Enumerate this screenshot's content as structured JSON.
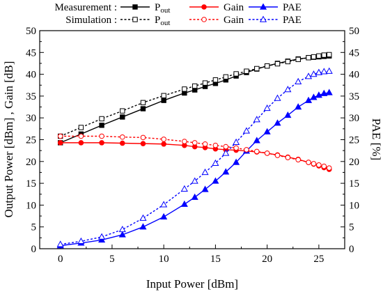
{
  "chart_data": {
    "type": "line",
    "xlabel": "Input Power [dBm]",
    "ylabel_left": "Output Power [dBm] , Gain [dB]",
    "ylabel_right": "PAE [%]",
    "xlim": [
      -2,
      27.5
    ],
    "ylim": [
      0,
      50
    ],
    "x_ticks": [
      0,
      5,
      10,
      15,
      20,
      25
    ],
    "y_ticks": [
      0,
      5,
      10,
      15,
      20,
      25,
      30,
      35,
      40,
      45,
      50
    ],
    "grid": false,
    "legend": {
      "placement": "top",
      "rows": [
        {
          "label": "Measurement :",
          "style": "solid",
          "entries": [
            {
              "series": "pout_meas",
              "text": "P",
              "sub": "out"
            },
            {
              "series": "gain_meas",
              "text": "Gain"
            },
            {
              "series": "pae_meas",
              "text": "PAE"
            }
          ]
        },
        {
          "label": "Simulation :",
          "style": "dashed",
          "entries": [
            {
              "series": "pout_sim",
              "text": "P",
              "sub": "out"
            },
            {
              "series": "gain_sim",
              "text": "Gain"
            },
            {
              "series": "pae_sim",
              "text": "PAE"
            }
          ]
        }
      ]
    },
    "series": [
      {
        "id": "pout_meas",
        "color": "#000000",
        "marker": "square",
        "filled": true,
        "dashed": false,
        "x": [
          0,
          2,
          4,
          6,
          8,
          10,
          12,
          13,
          14,
          15,
          16,
          17,
          18,
          19,
          20,
          21,
          22,
          23,
          24,
          24.5,
          25,
          25.5,
          26
        ],
        "y": [
          24.3,
          26.3,
          28.3,
          30.2,
          32.1,
          34.0,
          35.7,
          36.4,
          37.2,
          37.9,
          38.7,
          39.6,
          40.4,
          41.2,
          41.9,
          42.5,
          43.0,
          43.5,
          43.8,
          43.9,
          44.0,
          44.1,
          44.2
        ]
      },
      {
        "id": "gain_meas",
        "color": "#ff0000",
        "marker": "circle",
        "filled": true,
        "dashed": false,
        "x": [
          0,
          2,
          4,
          6,
          8,
          10,
          12,
          13,
          14,
          15,
          16,
          17,
          18,
          19,
          20,
          21,
          22,
          23,
          24,
          24.5,
          25,
          25.5,
          26
        ],
        "y": [
          24.3,
          24.3,
          24.3,
          24.2,
          24.1,
          24.0,
          23.7,
          23.4,
          23.2,
          22.9,
          22.7,
          22.6,
          22.4,
          22.2,
          21.9,
          21.5,
          21.0,
          20.5,
          19.8,
          19.4,
          19.0,
          18.6,
          18.2
        ]
      },
      {
        "id": "pae_meas",
        "color": "#0000ff",
        "marker": "triangle",
        "filled": true,
        "dashed": false,
        "x": [
          0,
          2,
          4,
          6,
          8,
          10,
          12,
          13,
          14,
          15,
          16,
          17,
          18,
          19,
          20,
          21,
          22,
          23,
          24,
          24.5,
          25,
          25.5,
          26
        ],
        "y": [
          0.7,
          1.3,
          2.0,
          3.2,
          5.0,
          7.3,
          10.2,
          11.8,
          13.6,
          15.5,
          17.6,
          19.8,
          22.4,
          24.8,
          26.8,
          28.8,
          30.6,
          32.5,
          34.0,
          34.7,
          35.2,
          35.6,
          35.8
        ]
      },
      {
        "id": "pout_sim",
        "color": "#000000",
        "marker": "square",
        "filled": false,
        "dashed": true,
        "x": [
          0,
          2,
          4,
          6,
          8,
          10,
          12,
          13,
          14,
          15,
          16,
          17,
          18,
          19,
          20,
          21,
          22,
          23,
          24,
          24.5,
          25,
          25.5,
          26
        ],
        "y": [
          25.8,
          27.8,
          29.8,
          31.6,
          33.5,
          35.1,
          36.6,
          37.3,
          38.0,
          38.7,
          39.4,
          40.1,
          40.7,
          41.3,
          41.9,
          42.4,
          42.9,
          43.4,
          43.8,
          44.0,
          44.2,
          44.4,
          44.5
        ]
      },
      {
        "id": "gain_sim",
        "color": "#ff0000",
        "marker": "circle",
        "filled": false,
        "dashed": true,
        "x": [
          0,
          2,
          4,
          6,
          8,
          10,
          12,
          13,
          14,
          15,
          16,
          17,
          18,
          19,
          20,
          21,
          22,
          23,
          24,
          24.5,
          25,
          25.5,
          26
        ],
        "y": [
          25.8,
          25.8,
          25.8,
          25.6,
          25.5,
          25.1,
          24.6,
          24.3,
          24.0,
          23.7,
          23.4,
          23.1,
          22.7,
          22.3,
          21.9,
          21.4,
          20.9,
          20.4,
          19.8,
          19.5,
          19.2,
          18.9,
          18.5
        ]
      },
      {
        "id": "pae_sim",
        "color": "#0000ff",
        "marker": "triangle",
        "filled": false,
        "dashed": true,
        "x": [
          0,
          2,
          4,
          6,
          8,
          10,
          12,
          13,
          14,
          15,
          16,
          17,
          18,
          19,
          20,
          21,
          22,
          23,
          24,
          24.5,
          25,
          25.5,
          26
        ],
        "y": [
          1.0,
          1.7,
          2.7,
          4.4,
          7.0,
          10.1,
          13.7,
          15.5,
          17.5,
          19.6,
          21.9,
          24.4,
          27.0,
          29.6,
          32.2,
          34.5,
          36.5,
          38.3,
          39.5,
          40.0,
          40.4,
          40.6,
          40.7
        ]
      }
    ]
  }
}
